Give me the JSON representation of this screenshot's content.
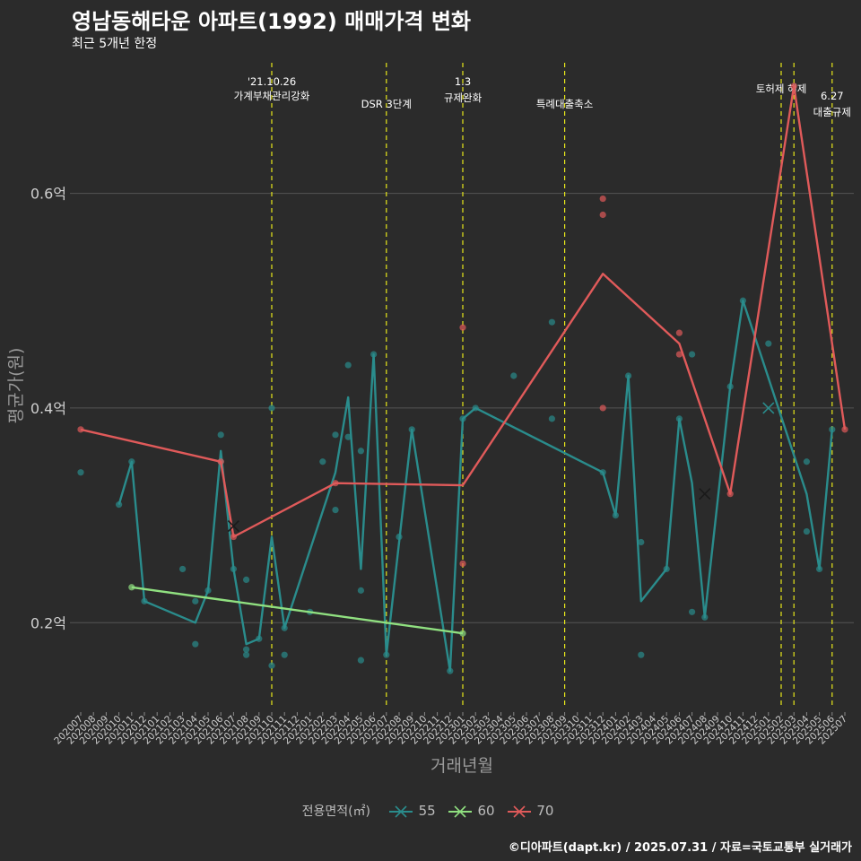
{
  "title": "영남동해타운 아파트(1992) 매매가격 변화",
  "subtitle": "최근 5개년 한정",
  "caption": "©디아파트(dapt.kr) / 2025.07.31 / 자료=국토교통부 실거래가",
  "legend_title": "전용면적(㎡)",
  "colors": {
    "background": "#2b2b2b",
    "grid": "#555555",
    "vline": "#e8e81a",
    "s55": "#2a8c8c",
    "s60": "#90e080",
    "s70": "#e05a5a"
  },
  "chart_data": {
    "type": "line",
    "xlabel": "거래년월",
    "ylabel": "평균가(원)",
    "ylim": [
      0.12,
      0.73
    ],
    "yticks": [
      {
        "value": 0.2,
        "label": "0.2억"
      },
      {
        "value": 0.4,
        "label": "0.4억"
      },
      {
        "value": 0.6,
        "label": "0.6억"
      }
    ],
    "x_categories": [
      "202007",
      "202008",
      "202009",
      "202010",
      "202011",
      "202012",
      "202101",
      "202102",
      "202103",
      "202104",
      "202105",
      "202106",
      "202107",
      "202108",
      "202109",
      "202110",
      "202111",
      "202112",
      "202201",
      "202202",
      "202203",
      "202204",
      "202205",
      "202206",
      "202207",
      "202208",
      "202209",
      "202210",
      "202211",
      "202212",
      "202301",
      "202302",
      "202303",
      "202304",
      "202305",
      "202306",
      "202307",
      "202308",
      "202309",
      "202310",
      "202311",
      "202312",
      "202401",
      "202402",
      "202403",
      "202404",
      "202405",
      "202406",
      "202407",
      "202408",
      "202409",
      "202410",
      "202411",
      "202412",
      "202501",
      "202502",
      "202503",
      "202504",
      "202505",
      "202506",
      "202507"
    ],
    "events": [
      {
        "x": "202110",
        "label": "'21.10.26\n가계부채관리강화"
      },
      {
        "x": "202207",
        "label": "DSR 3단계"
      },
      {
        "x": "202301",
        "label": "1.3\n규제완화"
      },
      {
        "x": "202309",
        "label": "특례대출축소"
      },
      {
        "x": "202502",
        "label": "토허제 해제"
      },
      {
        "x": "202503",
        "label": ""
      },
      {
        "x": "202506",
        "label": "6.27\n대출규제"
      }
    ],
    "series": [
      {
        "name": "55",
        "line": [
          {
            "x": "202010",
            "y": 0.31
          },
          {
            "x": "202011",
            "y": 0.35
          },
          {
            "x": "202012",
            "y": 0.22
          },
          {
            "x": "202104",
            "y": 0.2
          },
          {
            "x": "202105",
            "y": 0.23
          },
          {
            "x": "202106",
            "y": 0.36
          },
          {
            "x": "202107",
            "y": 0.25
          },
          {
            "x": "202108",
            "y": 0.18
          },
          {
            "x": "202109",
            "y": 0.185
          },
          {
            "x": "202110",
            "y": 0.28
          },
          {
            "x": "202111",
            "y": 0.195
          },
          {
            "x": "202203",
            "y": 0.34
          },
          {
            "x": "202204",
            "y": 0.41
          },
          {
            "x": "202205",
            "y": 0.25
          },
          {
            "x": "202206",
            "y": 0.45
          },
          {
            "x": "202207",
            "y": 0.17
          },
          {
            "x": "202209",
            "y": 0.38
          },
          {
            "x": "202212",
            "y": 0.155
          },
          {
            "x": "202301",
            "y": 0.39
          },
          {
            "x": "202302",
            "y": 0.4
          },
          {
            "x": "202312",
            "y": 0.34
          },
          {
            "x": "202401",
            "y": 0.3
          },
          {
            "x": "202402",
            "y": 0.43
          },
          {
            "x": "202403",
            "y": 0.22
          },
          {
            "x": "202405",
            "y": 0.25
          },
          {
            "x": "202406",
            "y": 0.39
          },
          {
            "x": "202407",
            "y": 0.33
          },
          {
            "x": "202408",
            "y": 0.205
          },
          {
            "x": "202410",
            "y": 0.42
          },
          {
            "x": "202411",
            "y": 0.5
          },
          {
            "x": "202504",
            "y": 0.32
          },
          {
            "x": "202505",
            "y": 0.25
          },
          {
            "x": "202506",
            "y": 0.38
          }
        ],
        "points": [
          {
            "x": "202007",
            "y": 0.34
          },
          {
            "x": "202010",
            "y": 0.31
          },
          {
            "x": "202011",
            "y": 0.35
          },
          {
            "x": "202012",
            "y": 0.22
          },
          {
            "x": "202103",
            "y": 0.25
          },
          {
            "x": "202104",
            "y": 0.22
          },
          {
            "x": "202104",
            "y": 0.18
          },
          {
            "x": "202105",
            "y": 0.23
          },
          {
            "x": "202106",
            "y": 0.375
          },
          {
            "x": "202106",
            "y": 0.35
          },
          {
            "x": "202107",
            "y": 0.25
          },
          {
            "x": "202108",
            "y": 0.24
          },
          {
            "x": "202108",
            "y": 0.175
          },
          {
            "x": "202108",
            "y": 0.17
          },
          {
            "x": "202109",
            "y": 0.185
          },
          {
            "x": "202110",
            "y": 0.4
          },
          {
            "x": "202110",
            "y": 0.16
          },
          {
            "x": "202111",
            "y": 0.195
          },
          {
            "x": "202111",
            "y": 0.17
          },
          {
            "x": "202201",
            "y": 0.21
          },
          {
            "x": "202202",
            "y": 0.35
          },
          {
            "x": "202203",
            "y": 0.375
          },
          {
            "x": "202203",
            "y": 0.305
          },
          {
            "x": "202204",
            "y": 0.44
          },
          {
            "x": "202204",
            "y": 0.373
          },
          {
            "x": "202205",
            "y": 0.36
          },
          {
            "x": "202205",
            "y": 0.23
          },
          {
            "x": "202205",
            "y": 0.165
          },
          {
            "x": "202206",
            "y": 0.45
          },
          {
            "x": "202207",
            "y": 0.17
          },
          {
            "x": "202208",
            "y": 0.28
          },
          {
            "x": "202209",
            "y": 0.38
          },
          {
            "x": "202212",
            "y": 0.155
          },
          {
            "x": "202301",
            "y": 0.39
          },
          {
            "x": "202302",
            "y": 0.4
          },
          {
            "x": "202305",
            "y": 0.43
          },
          {
            "x": "202308",
            "y": 0.48
          },
          {
            "x": "202308",
            "y": 0.39
          },
          {
            "x": "202312",
            "y": 0.34
          },
          {
            "x": "202401",
            "y": 0.3
          },
          {
            "x": "202402",
            "y": 0.43
          },
          {
            "x": "202403",
            "y": 0.275
          },
          {
            "x": "202403",
            "y": 0.17
          },
          {
            "x": "202405",
            "y": 0.25
          },
          {
            "x": "202406",
            "y": 0.39
          },
          {
            "x": "202407",
            "y": 0.45
          },
          {
            "x": "202407",
            "y": 0.21
          },
          {
            "x": "202408",
            "y": 0.205
          },
          {
            "x": "202410",
            "y": 0.42
          },
          {
            "x": "202411",
            "y": 0.5
          },
          {
            "x": "202501",
            "y": 0.46
          },
          {
            "x": "202504",
            "y": 0.35
          },
          {
            "x": "202504",
            "y": 0.285
          },
          {
            "x": "202505",
            "y": 0.25
          },
          {
            "x": "202506",
            "y": 0.38
          }
        ],
        "cross": [
          {
            "x": "202501",
            "y": 0.4
          }
        ]
      },
      {
        "name": "60",
        "line": [
          {
            "x": "202011",
            "y": 0.233
          },
          {
            "x": "202301",
            "y": 0.19
          }
        ],
        "points": [
          {
            "x": "202011",
            "y": 0.233
          },
          {
            "x": "202301",
            "y": 0.19
          }
        ],
        "cross": []
      },
      {
        "name": "70",
        "line": [
          {
            "x": "202007",
            "y": 0.38
          },
          {
            "x": "202106",
            "y": 0.35
          },
          {
            "x": "202107",
            "y": 0.28
          },
          {
            "x": "202203",
            "y": 0.33
          },
          {
            "x": "202301",
            "y": 0.328
          },
          {
            "x": "202312",
            "y": 0.525
          },
          {
            "x": "202406",
            "y": 0.46
          },
          {
            "x": "202410",
            "y": 0.32
          },
          {
            "x": "202503",
            "y": 0.7
          },
          {
            "x": "202507",
            "y": 0.38
          }
        ],
        "points": [
          {
            "x": "202007",
            "y": 0.38
          },
          {
            "x": "202106",
            "y": 0.35
          },
          {
            "x": "202107",
            "y": 0.28
          },
          {
            "x": "202203",
            "y": 0.33
          },
          {
            "x": "202301",
            "y": 0.475
          },
          {
            "x": "202301",
            "y": 0.255
          },
          {
            "x": "202312",
            "y": 0.595
          },
          {
            "x": "202312",
            "y": 0.58
          },
          {
            "x": "202312",
            "y": 0.4
          },
          {
            "x": "202406",
            "y": 0.47
          },
          {
            "x": "202406",
            "y": 0.45
          },
          {
            "x": "202410",
            "y": 0.32
          },
          {
            "x": "202503",
            "y": 0.7
          },
          {
            "x": "202507",
            "y": 0.38
          }
        ],
        "cross": [
          {
            "x": "202107",
            "y": 0.29
          },
          {
            "x": "202408",
            "y": 0.32
          }
        ]
      }
    ]
  }
}
